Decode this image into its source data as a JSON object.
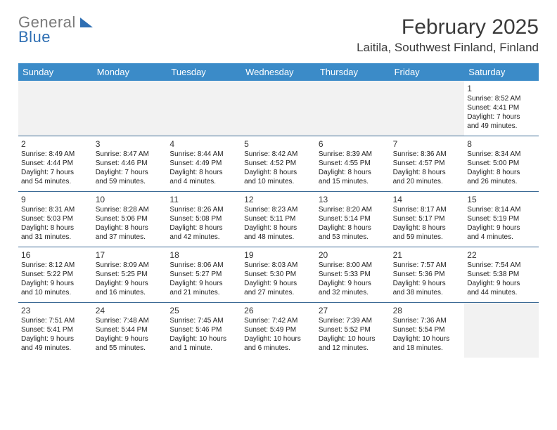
{
  "logo": {
    "part1": "General",
    "part2": "Blue"
  },
  "title": "February 2025",
  "location": "Laitila, Southwest Finland, Finland",
  "colors": {
    "header_bg": "#3b8bc8",
    "header_text": "#ffffff",
    "week_border": "#3b6a95",
    "blank_bg": "#f2f2f2",
    "logo_gray": "#7a7a7a",
    "logo_blue": "#2f6fb3"
  },
  "daysOfWeek": [
    "Sunday",
    "Monday",
    "Tuesday",
    "Wednesday",
    "Thursday",
    "Friday",
    "Saturday"
  ],
  "weeks": [
    [
      {
        "blank": true
      },
      {
        "blank": true
      },
      {
        "blank": true
      },
      {
        "blank": true
      },
      {
        "blank": true
      },
      {
        "blank": true
      },
      {
        "n": "1",
        "sunrise": "Sunrise: 8:52 AM",
        "sunset": "Sunset: 4:41 PM",
        "day1": "Daylight: 7 hours",
        "day2": "and 49 minutes."
      }
    ],
    [
      {
        "n": "2",
        "sunrise": "Sunrise: 8:49 AM",
        "sunset": "Sunset: 4:44 PM",
        "day1": "Daylight: 7 hours",
        "day2": "and 54 minutes."
      },
      {
        "n": "3",
        "sunrise": "Sunrise: 8:47 AM",
        "sunset": "Sunset: 4:46 PM",
        "day1": "Daylight: 7 hours",
        "day2": "and 59 minutes."
      },
      {
        "n": "4",
        "sunrise": "Sunrise: 8:44 AM",
        "sunset": "Sunset: 4:49 PM",
        "day1": "Daylight: 8 hours",
        "day2": "and 4 minutes."
      },
      {
        "n": "5",
        "sunrise": "Sunrise: 8:42 AM",
        "sunset": "Sunset: 4:52 PM",
        "day1": "Daylight: 8 hours",
        "day2": "and 10 minutes."
      },
      {
        "n": "6",
        "sunrise": "Sunrise: 8:39 AM",
        "sunset": "Sunset: 4:55 PM",
        "day1": "Daylight: 8 hours",
        "day2": "and 15 minutes."
      },
      {
        "n": "7",
        "sunrise": "Sunrise: 8:36 AM",
        "sunset": "Sunset: 4:57 PM",
        "day1": "Daylight: 8 hours",
        "day2": "and 20 minutes."
      },
      {
        "n": "8",
        "sunrise": "Sunrise: 8:34 AM",
        "sunset": "Sunset: 5:00 PM",
        "day1": "Daylight: 8 hours",
        "day2": "and 26 minutes."
      }
    ],
    [
      {
        "n": "9",
        "sunrise": "Sunrise: 8:31 AM",
        "sunset": "Sunset: 5:03 PM",
        "day1": "Daylight: 8 hours",
        "day2": "and 31 minutes."
      },
      {
        "n": "10",
        "sunrise": "Sunrise: 8:28 AM",
        "sunset": "Sunset: 5:06 PM",
        "day1": "Daylight: 8 hours",
        "day2": "and 37 minutes."
      },
      {
        "n": "11",
        "sunrise": "Sunrise: 8:26 AM",
        "sunset": "Sunset: 5:08 PM",
        "day1": "Daylight: 8 hours",
        "day2": "and 42 minutes."
      },
      {
        "n": "12",
        "sunrise": "Sunrise: 8:23 AM",
        "sunset": "Sunset: 5:11 PM",
        "day1": "Daylight: 8 hours",
        "day2": "and 48 minutes."
      },
      {
        "n": "13",
        "sunrise": "Sunrise: 8:20 AM",
        "sunset": "Sunset: 5:14 PM",
        "day1": "Daylight: 8 hours",
        "day2": "and 53 minutes."
      },
      {
        "n": "14",
        "sunrise": "Sunrise: 8:17 AM",
        "sunset": "Sunset: 5:17 PM",
        "day1": "Daylight: 8 hours",
        "day2": "and 59 minutes."
      },
      {
        "n": "15",
        "sunrise": "Sunrise: 8:14 AM",
        "sunset": "Sunset: 5:19 PM",
        "day1": "Daylight: 9 hours",
        "day2": "and 4 minutes."
      }
    ],
    [
      {
        "n": "16",
        "sunrise": "Sunrise: 8:12 AM",
        "sunset": "Sunset: 5:22 PM",
        "day1": "Daylight: 9 hours",
        "day2": "and 10 minutes."
      },
      {
        "n": "17",
        "sunrise": "Sunrise: 8:09 AM",
        "sunset": "Sunset: 5:25 PM",
        "day1": "Daylight: 9 hours",
        "day2": "and 16 minutes."
      },
      {
        "n": "18",
        "sunrise": "Sunrise: 8:06 AM",
        "sunset": "Sunset: 5:27 PM",
        "day1": "Daylight: 9 hours",
        "day2": "and 21 minutes."
      },
      {
        "n": "19",
        "sunrise": "Sunrise: 8:03 AM",
        "sunset": "Sunset: 5:30 PM",
        "day1": "Daylight: 9 hours",
        "day2": "and 27 minutes."
      },
      {
        "n": "20",
        "sunrise": "Sunrise: 8:00 AM",
        "sunset": "Sunset: 5:33 PM",
        "day1": "Daylight: 9 hours",
        "day2": "and 32 minutes."
      },
      {
        "n": "21",
        "sunrise": "Sunrise: 7:57 AM",
        "sunset": "Sunset: 5:36 PM",
        "day1": "Daylight: 9 hours",
        "day2": "and 38 minutes."
      },
      {
        "n": "22",
        "sunrise": "Sunrise: 7:54 AM",
        "sunset": "Sunset: 5:38 PM",
        "day1": "Daylight: 9 hours",
        "day2": "and 44 minutes."
      }
    ],
    [
      {
        "n": "23",
        "sunrise": "Sunrise: 7:51 AM",
        "sunset": "Sunset: 5:41 PM",
        "day1": "Daylight: 9 hours",
        "day2": "and 49 minutes."
      },
      {
        "n": "24",
        "sunrise": "Sunrise: 7:48 AM",
        "sunset": "Sunset: 5:44 PM",
        "day1": "Daylight: 9 hours",
        "day2": "and 55 minutes."
      },
      {
        "n": "25",
        "sunrise": "Sunrise: 7:45 AM",
        "sunset": "Sunset: 5:46 PM",
        "day1": "Daylight: 10 hours",
        "day2": "and 1 minute."
      },
      {
        "n": "26",
        "sunrise": "Sunrise: 7:42 AM",
        "sunset": "Sunset: 5:49 PM",
        "day1": "Daylight: 10 hours",
        "day2": "and 6 minutes."
      },
      {
        "n": "27",
        "sunrise": "Sunrise: 7:39 AM",
        "sunset": "Sunset: 5:52 PM",
        "day1": "Daylight: 10 hours",
        "day2": "and 12 minutes."
      },
      {
        "n": "28",
        "sunrise": "Sunrise: 7:36 AM",
        "sunset": "Sunset: 5:54 PM",
        "day1": "Daylight: 10 hours",
        "day2": "and 18 minutes."
      },
      {
        "blank": true,
        "tall": true
      }
    ]
  ]
}
